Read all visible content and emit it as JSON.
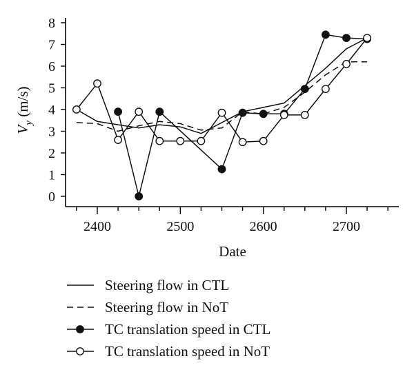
{
  "chart_data": {
    "type": "line",
    "title": "",
    "xlabel": "Date",
    "ylabel": "V",
    "ylabel_sub": "y",
    "ylabel_unit": " (m/s)",
    "xlim": [
      2365,
      2760
    ],
    "ylim": [
      0,
      8
    ],
    "x_ticks": [
      2400,
      2500,
      2600,
      2700
    ],
    "y_ticks": [
      0,
      1,
      2,
      3,
      4,
      5,
      6,
      7,
      8
    ],
    "grid": false,
    "legend_position": "bottom",
    "series": [
      {
        "name": "Steering flow in CTL",
        "style": "solid",
        "marker": "none",
        "x": [
          2375,
          2400,
          2425,
          2450,
          2475,
          2500,
          2525,
          2550,
          2575,
          2600,
          2625,
          2650,
          2675,
          2700,
          2725
        ],
        "y": [
          4.0,
          3.45,
          3.3,
          3.15,
          3.3,
          3.2,
          2.9,
          3.4,
          3.9,
          4.1,
          4.3,
          5.1,
          5.9,
          6.8,
          7.3
        ]
      },
      {
        "name": "Steering flow in NoT",
        "style": "dashed",
        "marker": "none",
        "x": [
          2375,
          2400,
          2425,
          2450,
          2475,
          2500,
          2525,
          2550,
          2575,
          2600,
          2625,
          2650,
          2675,
          2700,
          2725
        ],
        "y": [
          3.4,
          3.35,
          3.0,
          3.25,
          3.45,
          3.35,
          3.05,
          3.15,
          3.9,
          3.8,
          4.1,
          4.8,
          5.6,
          6.2,
          6.2
        ]
      },
      {
        "name": "TC translation speed in CTL",
        "style": "solid",
        "marker": "filled",
        "x": [
          2425,
          2450,
          2475,
          2550,
          2575,
          2600,
          2625,
          2650,
          2675,
          2700,
          2725
        ],
        "y": [
          3.9,
          0.0,
          3.9,
          1.25,
          3.85,
          3.8,
          3.8,
          4.95,
          7.45,
          7.3,
          7.25
        ]
      },
      {
        "name": "TC translation speed in NoT",
        "style": "solid",
        "marker": "open",
        "x": [
          2375,
          2400,
          2425,
          2450,
          2475,
          2500,
          2525,
          2550,
          2575,
          2600,
          2625,
          2650,
          2675,
          2700,
          2725
        ],
        "y": [
          4.0,
          5.2,
          2.6,
          3.9,
          2.55,
          2.55,
          2.55,
          3.85,
          2.5,
          2.55,
          3.75,
          3.75,
          4.95,
          6.1,
          7.3
        ]
      }
    ]
  }
}
